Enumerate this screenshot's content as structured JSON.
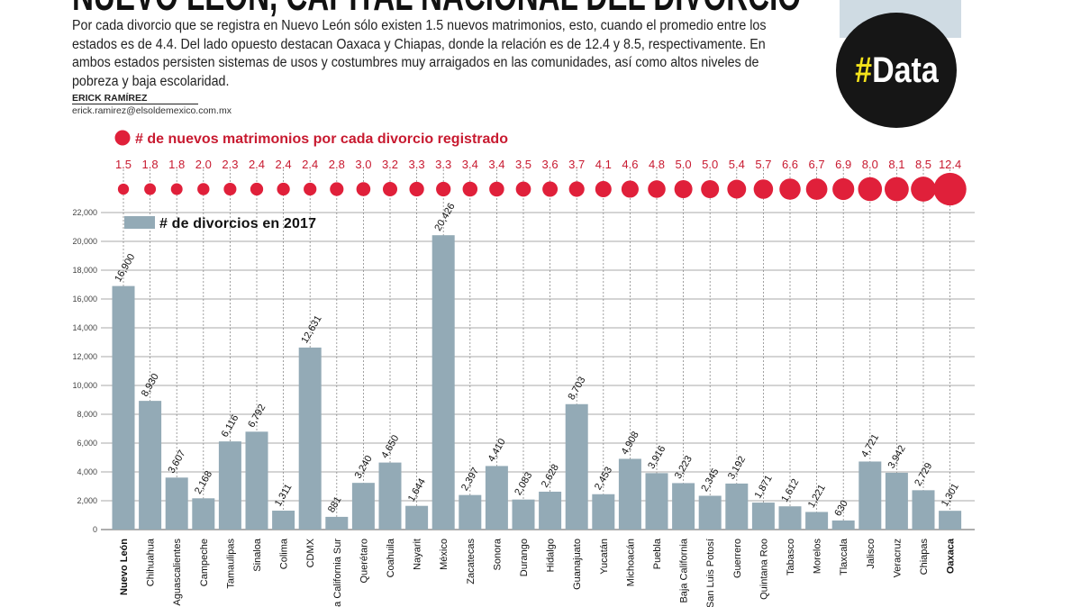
{
  "header": {
    "title": "NUEVO LEÓN, CAPITAL NACIONAL DEL DIVORCIO",
    "intro": "Por cada divorcio que se registra en Nuevo León sólo existen 1.5 nuevos matrimonios, esto, cuando el promedio entre los estados es de 4.4. Del lado opuesto destacan Oaxaca y Chiapas, donde la relación es de 12.4 y 8.5, respectivamente. En ambos estados persisten sistemas de usos y costumbres muy arraigados en las comunidades, así como altos niveles de pobreza y baja escolaridad.",
    "author": "ERICK RAMÍREZ",
    "email": "erick.ramirez@elsoldemexico.com.mx",
    "badge_hash": "#",
    "badge_text": "Data"
  },
  "colors": {
    "dots": "#e0203a",
    "bars": "#93aab6",
    "badge_yellow": "#f4e31b"
  },
  "chart_data": {
    "type": "bar",
    "categories": [
      "Nuevo León",
      "Chihuahua",
      "Aguascalientes",
      "Campeche",
      "Tamaulipas",
      "Sinaloa",
      "Colima",
      "CDMX",
      "Baja California Sur",
      "Querétaro",
      "Coahuila",
      "Nayarit",
      "México",
      "Zacatecas",
      "Sonora",
      "Durango",
      "Hidalgo",
      "Guanajuato",
      "Yucatán",
      "Michoacán",
      "Puebla",
      "Baja California",
      "San Luis Potosí",
      "Guerrero",
      "Quintana Roo",
      "Tabasco",
      "Morelos",
      "Tlaxcala",
      "Jalisco",
      "Veracruz",
      "Chiapas",
      "Oaxaca"
    ],
    "bold_categories": [
      "Nuevo León",
      "Oaxaca"
    ],
    "series": [
      {
        "name": "# de divorcios en 2017",
        "type": "bar",
        "values": [
          16900,
          8930,
          3607,
          2168,
          6116,
          6792,
          1311,
          12631,
          881,
          3240,
          4650,
          1644,
          20426,
          2397,
          4410,
          2083,
          2628,
          8703,
          2453,
          4908,
          3916,
          3223,
          2345,
          3192,
          1871,
          1612,
          1221,
          630,
          4721,
          3942,
          2729,
          1301
        ]
      },
      {
        "name": "# de nuevos matrimonios por cada divorcio registrado",
        "type": "bubble",
        "values": [
          1.5,
          1.8,
          1.8,
          2.0,
          2.3,
          2.4,
          2.4,
          2.4,
          2.8,
          3.0,
          3.2,
          3.3,
          3.3,
          3.4,
          3.4,
          3.5,
          3.6,
          3.7,
          4.1,
          4.6,
          4.8,
          5.0,
          5.0,
          5.4,
          5.7,
          6.6,
          6.7,
          6.9,
          8.0,
          8.1,
          8.5,
          12.4
        ]
      }
    ],
    "yticks": [
      "0",
      "2,000",
      "4,000",
      "6,000",
      "8,000",
      "10,000",
      "12,000",
      "14,000",
      "16,000",
      "18,000",
      "20,000",
      "22,000"
    ],
    "ylim": [
      0,
      22000
    ],
    "grid": true,
    "legend": "top-left"
  }
}
